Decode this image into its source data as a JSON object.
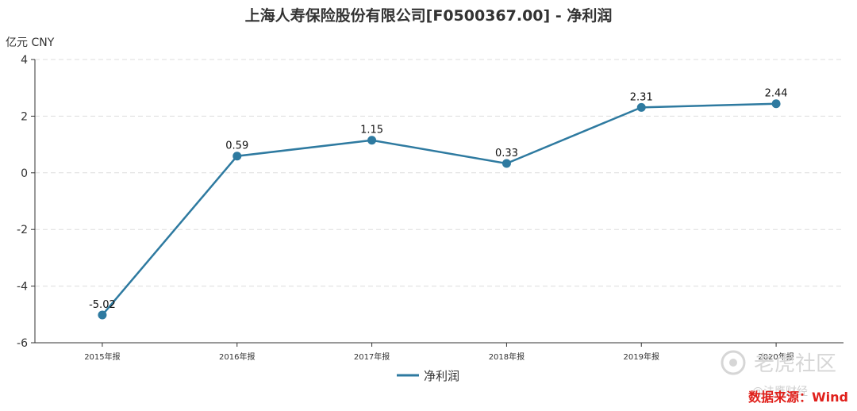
{
  "chart_data": {
    "type": "line",
    "title": "上海人寿保险股份有限公司[F0500367.00] - 净利润",
    "unit_label": "亿元  CNY",
    "categories": [
      "2015年报",
      "2016年报",
      "2017年报",
      "2018年报",
      "2019年报",
      "2020年报"
    ],
    "series": [
      {
        "name": "净利润",
        "values": [
          -5.02,
          0.59,
          1.15,
          0.33,
          2.31,
          2.44
        ],
        "color": "#2e7aa0"
      }
    ],
    "data_labels": [
      "-5.02",
      "0.59",
      "1.15",
      "0.33",
      "2.31",
      "2.44"
    ],
    "yticks": [
      "4",
      "2",
      "0",
      "-2",
      "-4",
      "-6"
    ],
    "ylim": [
      -6,
      4
    ],
    "grid": true,
    "legend_position": "bottom-center"
  },
  "watermark": {
    "icon": "tiger-logo-icon",
    "text": "老虎社区",
    "sub": "@法鹰财经"
  },
  "source_note": "数据来源：Wind"
}
